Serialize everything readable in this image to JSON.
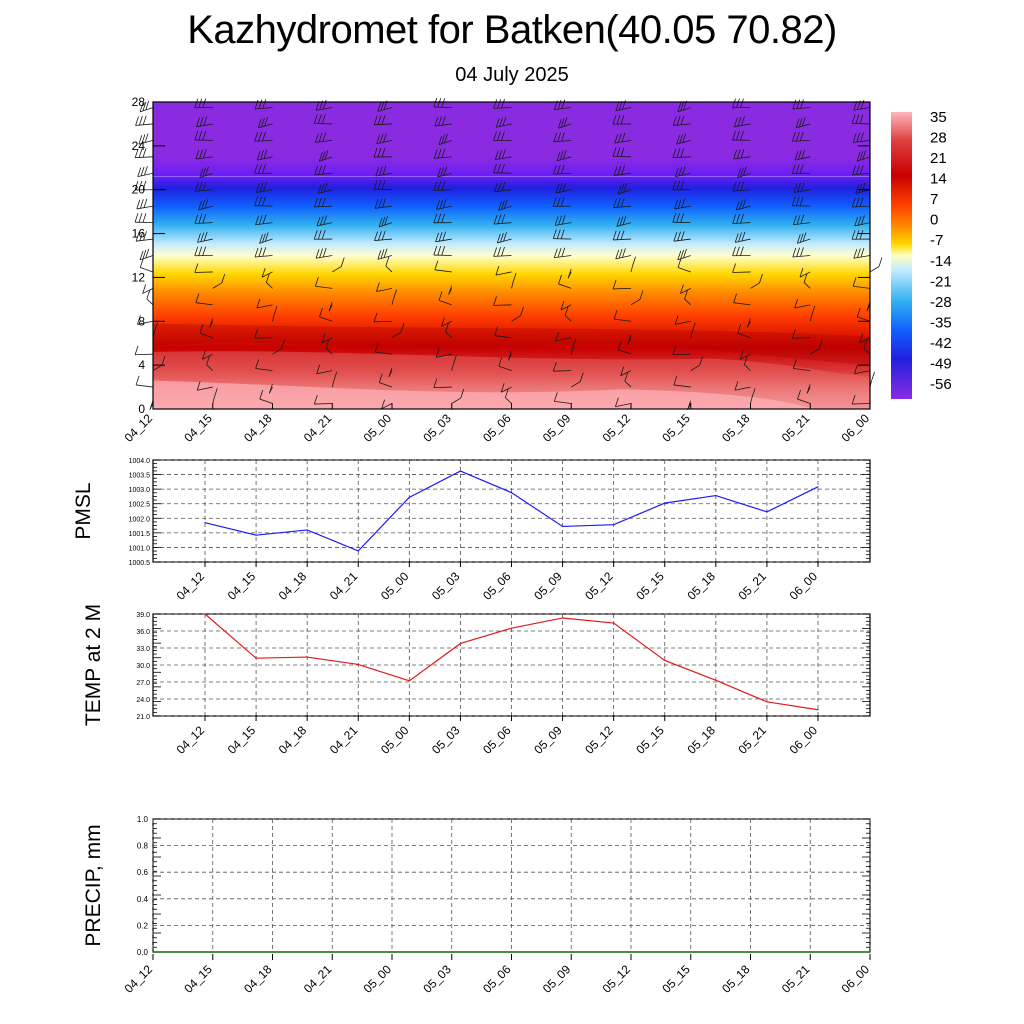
{
  "title": "Kazhydromet for Batken(40.05 70.82)",
  "subtitle": "04 July 2025",
  "colors": {
    "pmsl_line": "#1a1aff",
    "temp_line": "#e11b1b",
    "precip_line": "#1a7a1a",
    "grid": "#555555"
  },
  "chart_data": [
    {
      "type": "heatmap",
      "name": "cross_section",
      "x_ticks": [
        "04_12",
        "04_15",
        "04_18",
        "04_21",
        "05_00",
        "05_03",
        "05_06",
        "05_09",
        "05_12",
        "05_15",
        "05_18",
        "05_21",
        "06_00"
      ],
      "y_ticks": [
        0,
        4,
        8,
        12,
        16,
        20,
        24,
        28
      ],
      "ylim": [
        0,
        28
      ],
      "colorbar_labels": [
        "35",
        "28",
        "21",
        "14",
        "7",
        "0",
        "-7",
        "-14",
        "-21",
        "-28",
        "-35",
        "-42",
        "-49",
        "-56"
      ],
      "grid": false,
      "wind_barbs": true
    },
    {
      "type": "line",
      "name": "pmsl",
      "ylabel": "PMSL",
      "x": [
        "04_12",
        "04_15",
        "04_18",
        "04_21",
        "05_00",
        "05_03",
        "05_06",
        "05_09",
        "05_12",
        "05_15",
        "05_18",
        "05_21",
        "06_00"
      ],
      "values": [
        1001.85,
        1001.42,
        1001.6,
        1000.88,
        1002.72,
        1003.62,
        1002.88,
        1001.72,
        1001.78,
        1002.52,
        1002.78,
        1002.22,
        1003.08
      ],
      "ylim": [
        1000.5,
        1004.0
      ],
      "y_ticks": [
        "1000.5",
        "1001.0",
        "1001.5",
        "1002.0",
        "1002.5",
        "1003.0",
        "1003.5",
        "1004.0"
      ],
      "grid": true
    },
    {
      "type": "line",
      "name": "temp",
      "ylabel": "TEMP at 2 M",
      "x": [
        "04_12",
        "04_15",
        "04_18",
        "04_21",
        "05_00",
        "05_03",
        "05_06",
        "05_09",
        "05_12",
        "05_15",
        "05_18",
        "05_21",
        "06_00"
      ],
      "values": [
        39.0,
        31.2,
        31.4,
        30.1,
        27.2,
        33.8,
        36.5,
        38.3,
        37.4,
        30.8,
        27.3,
        23.5,
        22.1
      ],
      "ylim": [
        21.0,
        39.0
      ],
      "y_ticks": [
        "21.0",
        "24.0",
        "27.0",
        "30.0",
        "33.0",
        "36.0",
        "39.0"
      ],
      "grid": true
    },
    {
      "type": "line",
      "name": "precip",
      "ylabel": "PRECIP, mm",
      "x": [
        "04_12",
        "04_15",
        "04_18",
        "04_21",
        "05_00",
        "05_03",
        "05_06",
        "05_09",
        "05_12",
        "05_15",
        "05_18",
        "05_21",
        "06_00"
      ],
      "values": [
        0,
        0,
        0,
        0,
        0,
        0,
        0,
        0,
        0,
        0,
        0,
        0,
        0
      ],
      "ylim": [
        0.0,
        1.0
      ],
      "y_ticks": [
        "0.0",
        "0.2",
        "0.4",
        "0.6",
        "0.8",
        "1.0"
      ],
      "grid": true
    }
  ]
}
